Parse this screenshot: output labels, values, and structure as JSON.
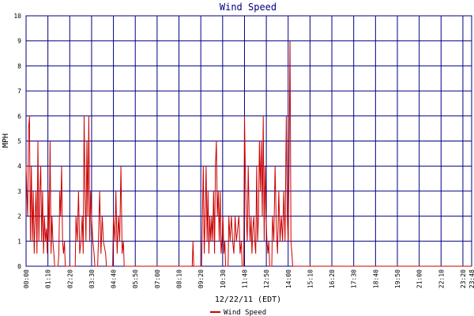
{
  "chart_data": {
    "type": "line",
    "title": "Wind Speed",
    "xlabel": "12/22/11 (EDT)",
    "ylabel": "MPH",
    "ylim": [
      0,
      10
    ],
    "yticks": [
      0,
      1,
      2,
      3,
      4,
      5,
      6,
      7,
      8,
      9,
      10
    ],
    "xlim": [
      "00:00",
      "23:48"
    ],
    "xticks": [
      "00:00",
      "01:10",
      "02:20",
      "03:30",
      "04:40",
      "05:50",
      "07:00",
      "08:10",
      "09:20",
      "10:30",
      "11:40",
      "12:50",
      "14:00",
      "15:10",
      "16:20",
      "17:30",
      "18:40",
      "19:50",
      "21:00",
      "22:10",
      "23:20",
      "23:48"
    ],
    "grid": true,
    "legend_position": "bottom-center",
    "series": [
      {
        "name": "Wind Speed",
        "color": "#cc0000",
        "points": [
          [
            "00:00",
            4
          ],
          [
            "00:05",
            2
          ],
          [
            "00:08",
            5.5
          ],
          [
            "00:11",
            6
          ],
          [
            "00:14",
            1
          ],
          [
            "00:17",
            4
          ],
          [
            "00:20",
            1
          ],
          [
            "00:23",
            3
          ],
          [
            "00:26",
            0.5
          ],
          [
            "00:29",
            2
          ],
          [
            "00:32",
            3
          ],
          [
            "00:35",
            0.5
          ],
          [
            "00:38",
            5
          ],
          [
            "00:41",
            1
          ],
          [
            "00:44",
            3
          ],
          [
            "00:47",
            4
          ],
          [
            "00:50",
            1
          ],
          [
            "00:53",
            3
          ],
          [
            "00:56",
            0.5
          ],
          [
            "00:59",
            2
          ],
          [
            "01:02",
            1
          ],
          [
            "01:05",
            1.5
          ],
          [
            "01:08",
            0.5
          ],
          [
            "01:11",
            3
          ],
          [
            "01:14",
            1
          ],
          [
            "01:17",
            5
          ],
          [
            "01:20",
            0.5
          ],
          [
            "01:23",
            2
          ],
          [
            "01:26",
            1
          ],
          [
            "01:29",
            0.5
          ],
          [
            "01:45",
            0.5
          ],
          [
            "01:48",
            3
          ],
          [
            "01:51",
            2
          ],
          [
            "01:54",
            4
          ],
          [
            "01:57",
            1
          ],
          [
            "02:00",
            0.5
          ],
          [
            "02:03",
            1
          ],
          [
            "02:40",
            2
          ],
          [
            "02:44",
            1
          ],
          [
            "02:48",
            3
          ],
          [
            "02:52",
            0.5
          ],
          [
            "02:56",
            1
          ],
          [
            "03:00",
            2
          ],
          [
            "03:03",
            0.5
          ],
          [
            "03:06",
            6
          ],
          [
            "03:09",
            3
          ],
          [
            "03:12",
            1
          ],
          [
            "03:15",
            5
          ],
          [
            "03:18",
            2
          ],
          [
            "03:21",
            6
          ],
          [
            "03:24",
            1
          ],
          [
            "03:27",
            3
          ],
          [
            "03:30",
            2
          ],
          [
            "03:34",
            1
          ],
          [
            "03:38",
            0.5
          ],
          [
            "03:52",
            1
          ],
          [
            "03:56",
            3
          ],
          [
            "04:00",
            0.5
          ],
          [
            "04:04",
            2
          ],
          [
            "04:08",
            1
          ],
          [
            "04:15",
            0.5
          ],
          [
            "04:40",
            2
          ],
          [
            "04:45",
            1
          ],
          [
            "04:48",
            3
          ],
          [
            "04:52",
            0.5
          ],
          [
            "04:56",
            2
          ],
          [
            "05:00",
            1
          ],
          [
            "05:04",
            4
          ],
          [
            "05:08",
            0.5
          ],
          [
            "05:12",
            1
          ],
          [
            "08:55",
            1
          ],
          [
            "09:25",
            2
          ],
          [
            "09:28",
            4
          ],
          [
            "09:31",
            0.5
          ],
          [
            "09:34",
            2
          ],
          [
            "09:37",
            4
          ],
          [
            "09:40",
            1
          ],
          [
            "09:43",
            3
          ],
          [
            "09:46",
            0.5
          ],
          [
            "09:49",
            2
          ],
          [
            "09:52",
            1
          ],
          [
            "09:55",
            2
          ],
          [
            "09:58",
            1
          ],
          [
            "10:01",
            3
          ],
          [
            "10:04",
            0.5
          ],
          [
            "10:07",
            4
          ],
          [
            "10:10",
            5
          ],
          [
            "10:13",
            2
          ],
          [
            "10:16",
            3
          ],
          [
            "10:19",
            1
          ],
          [
            "10:22",
            3
          ],
          [
            "10:25",
            0.5
          ],
          [
            "10:28",
            1
          ],
          [
            "10:31",
            2
          ],
          [
            "10:34",
            0.5
          ],
          [
            "10:37",
            1
          ],
          [
            "10:50",
            2
          ],
          [
            "10:54",
            1
          ],
          [
            "10:58",
            2
          ],
          [
            "11:02",
            1
          ],
          [
            "11:06",
            0.5
          ],
          [
            "11:10",
            2
          ],
          [
            "11:14",
            1
          ],
          [
            "11:18",
            1.5
          ],
          [
            "11:22",
            2
          ],
          [
            "11:26",
            0.5
          ],
          [
            "11:30",
            1
          ],
          [
            "11:40",
            6
          ],
          [
            "11:43",
            3.5
          ],
          [
            "11:46",
            2
          ],
          [
            "11:49",
            1
          ],
          [
            "11:52",
            4
          ],
          [
            "11:55",
            2
          ],
          [
            "11:58",
            1
          ],
          [
            "12:01",
            2
          ],
          [
            "12:04",
            0.5
          ],
          [
            "12:07",
            1.5
          ],
          [
            "12:10",
            2
          ],
          [
            "12:13",
            1
          ],
          [
            "12:16",
            0.5
          ],
          [
            "12:19",
            4
          ],
          [
            "12:22",
            1
          ],
          [
            "12:25",
            2
          ],
          [
            "12:28",
            5
          ],
          [
            "12:31",
            3
          ],
          [
            "12:34",
            5
          ],
          [
            "12:37",
            2
          ],
          [
            "12:40",
            6
          ],
          [
            "12:43",
            1
          ],
          [
            "12:46",
            4
          ],
          [
            "12:49",
            2
          ],
          [
            "12:52",
            1
          ],
          [
            "12:55",
            0.5
          ],
          [
            "12:58",
            1
          ],
          [
            "13:10",
            2
          ],
          [
            "13:14",
            1
          ],
          [
            "13:18",
            4
          ],
          [
            "13:22",
            1.5
          ],
          [
            "13:26",
            0.5
          ],
          [
            "13:30",
            3
          ],
          [
            "13:34",
            1
          ],
          [
            "13:38",
            2
          ],
          [
            "13:42",
            1
          ],
          [
            "13:46",
            3
          ],
          [
            "13:50",
            1
          ],
          [
            "13:54",
            6
          ],
          [
            "13:57",
            2
          ],
          [
            "14:00",
            1
          ],
          [
            "14:03",
            4
          ],
          [
            "14:06",
            9
          ],
          [
            "14:09",
            1
          ],
          [
            "14:12",
            0.5
          ]
        ]
      }
    ]
  }
}
